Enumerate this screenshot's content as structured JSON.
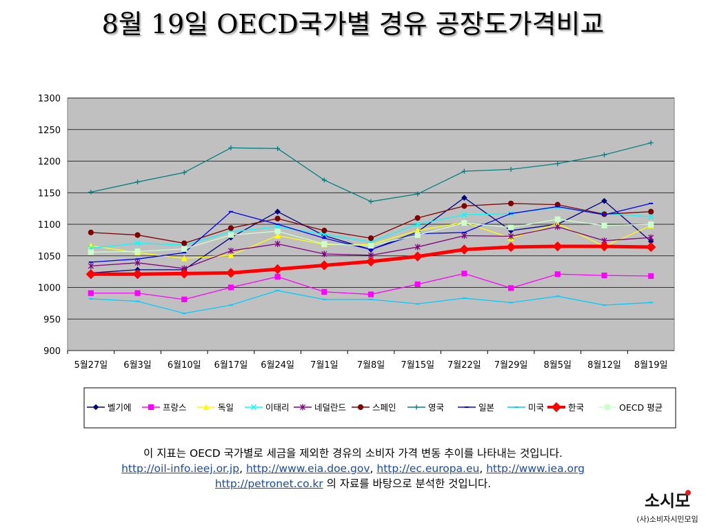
{
  "title": "8월 19일 OECD국가별 경유 공장도가격비교",
  "caption": {
    "line1": "이 지표는 OECD 국가별로 세금을 제외한 경유의 소비자 가격 변동 추이를 나타내는 것입니다.",
    "links": [
      "http://oil-info.ieej.or.jp",
      "http://www.eia.doe.gov",
      "http://ec.europa.eu",
      "http://www.iea.org",
      "http://petronet.co.kr"
    ],
    "sep": ", ",
    "tail": " 의 자료를 바탕으로 분석한 것입니다."
  },
  "logo": {
    "main": "소시모",
    "sub": "(사)소비자시민모임"
  },
  "colors": {
    "plot_bg": "#c0c0c0",
    "grid": "#000000"
  },
  "chart_data": {
    "type": "line",
    "categories": [
      "5월27일",
      "6월3일",
      "6월10일",
      "6월17일",
      "6월24일",
      "7월1일",
      "7월8일",
      "7월15일",
      "7월22일",
      "7월29일",
      "8월5일",
      "8월12일",
      "8월19일"
    ],
    "ylim": [
      900,
      1300
    ],
    "yticks": [
      900,
      950,
      1000,
      1050,
      1100,
      1150,
      1200,
      1250,
      1300
    ],
    "grid": true,
    "legend_position": "bottom",
    "series": [
      {
        "name": "벨기에",
        "color": "#000080",
        "marker": "diamond",
        "values": [
          1023,
          1028,
          1028,
          1079,
          1120,
          1082,
          1060,
          1088,
          1142,
          1090,
          1100,
          1137,
          1073
        ]
      },
      {
        "name": "프랑스",
        "color": "#ff00ff",
        "marker": "square",
        "values": [
          991,
          991,
          981,
          1000,
          1017,
          993,
          989,
          1005,
          1022,
          999,
          1021,
          1019,
          1018
        ]
      },
      {
        "name": "독일",
        "color": "#ffff00",
        "marker": "triangle",
        "values": [
          1066,
          1055,
          1046,
          1051,
          1082,
          1068,
          1068,
          1090,
          1103,
          1078,
          1101,
          1065,
          1098
        ]
      },
      {
        "name": "이태리",
        "color": "#00ffff",
        "marker": "x",
        "values": [
          1062,
          1070,
          1067,
          1088,
          1096,
          1084,
          1072,
          1100,
          1115,
          1117,
          1127,
          1117,
          1112
        ]
      },
      {
        "name": "네덜란드",
        "color": "#800080",
        "marker": "star",
        "values": [
          1034,
          1039,
          1030,
          1058,
          1069,
          1053,
          1051,
          1064,
          1082,
          1081,
          1096,
          1074,
          1079
        ]
      },
      {
        "name": "스페인",
        "color": "#800000",
        "marker": "circle",
        "values": [
          1087,
          1083,
          1070,
          1094,
          1109,
          1090,
          1078,
          1110,
          1129,
          1133,
          1131,
          1116,
          1120
        ]
      },
      {
        "name": "영국",
        "color": "#008080",
        "marker": "plus",
        "values": [
          1151,
          1167,
          1182,
          1221,
          1220,
          1170,
          1136,
          1148,
          1184,
          1187,
          1196,
          1210,
          1229
        ]
      },
      {
        "name": "일본",
        "color": "#0000ff",
        "marker": "dash",
        "values": [
          1040,
          1045,
          1055,
          1120,
          1100,
          1078,
          1060,
          1085,
          1087,
          1117,
          1128,
          1115,
          1133
        ]
      },
      {
        "name": "미국",
        "color": "#00ccff",
        "marker": "dash",
        "values": [
          982,
          978,
          959,
          972,
          995,
          981,
          981,
          974,
          983,
          976,
          986,
          972,
          976
        ]
      },
      {
        "name": "한국",
        "color": "#ff0000",
        "marker": "diamond",
        "values": [
          1021,
          1021,
          1022,
          1023,
          1029,
          1035,
          1041,
          1049,
          1060,
          1064,
          1065,
          1065,
          1064
        ],
        "emphasis": true
      },
      {
        "name": "OECD 평균",
        "color": "#ccffcc",
        "marker": "square",
        "values": [
          1056,
          1057,
          1061,
          1083,
          1089,
          1069,
          1066,
          1083,
          1102,
          1095,
          1108,
          1098,
          1100
        ]
      }
    ]
  }
}
